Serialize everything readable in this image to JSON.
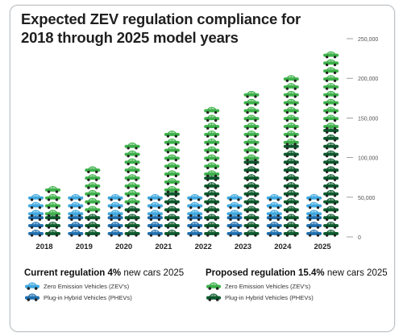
{
  "chart_data": {
    "type": "bar",
    "title": "Expected ZEV regulation compliance for 2018 through 2025 model years",
    "xlabel": "",
    "ylabel": "",
    "categories": [
      "2018",
      "2019",
      "2020",
      "2021",
      "2022",
      "2023",
      "2024",
      "2025"
    ],
    "ylim": [
      0,
      250000
    ],
    "yticks": [
      0,
      50000,
      100000,
      150000,
      200000,
      250000
    ],
    "ytick_labels": [
      "0",
      "50,000",
      "100,000",
      "150,000",
      "200,000",
      "250,000"
    ],
    "groups": [
      {
        "name": "Current regulation",
        "series": [
          {
            "name": "Plug-in Hybrid Vehicles (PHEVs)",
            "color": "#1f6fae",
            "values": [
              25000,
              25000,
              25000,
              25000,
              25000,
              25000,
              25000,
              25000
            ]
          },
          {
            "name": "Zero Emission Vehicles (ZEV's)",
            "color": "#3fa9e0",
            "values": [
              25000,
              25000,
              30000,
              30000,
              30000,
              30000,
              30000,
              30000
            ]
          }
        ]
      },
      {
        "name": "Proposed regulation",
        "series": [
          {
            "name": "Plug-in Hybrid Vehicles (PHEVs)",
            "color": "#0c5a2c",
            "values": [
              25000,
              30000,
              40000,
              55000,
              75000,
              95000,
              115000,
              135000
            ]
          },
          {
            "name": "Zero Emission Vehicles (ZEV's)",
            "color": "#3db14a",
            "values": [
              35000,
              60000,
              75000,
              80000,
              90000,
              90000,
              90000,
              95000
            ]
          }
        ]
      }
    ],
    "legend_position": "bottom",
    "grid": false
  },
  "legend": {
    "current": {
      "label_prefix": "Current regulation",
      "pct": "4%",
      "label_suffix": "new cars 2025",
      "items": [
        "Zero Emission Vehicles (ZEV's)",
        "Plug-in Hybrid Vehicles (PHEVs)"
      ]
    },
    "proposed": {
      "label_prefix": "Proposed regulation",
      "pct": "15.4%",
      "label_suffix": "new cars 2025",
      "items": [
        "Zero Emission Vehicles (ZEV's)",
        "Plug-in Hybrid Vehicles (PHEVs)"
      ]
    }
  },
  "colors": {
    "current_zev": "#3fa9e0",
    "current_phev": "#1f6fae",
    "proposed_zev": "#3db14a",
    "proposed_phev": "#0c5a2c"
  }
}
